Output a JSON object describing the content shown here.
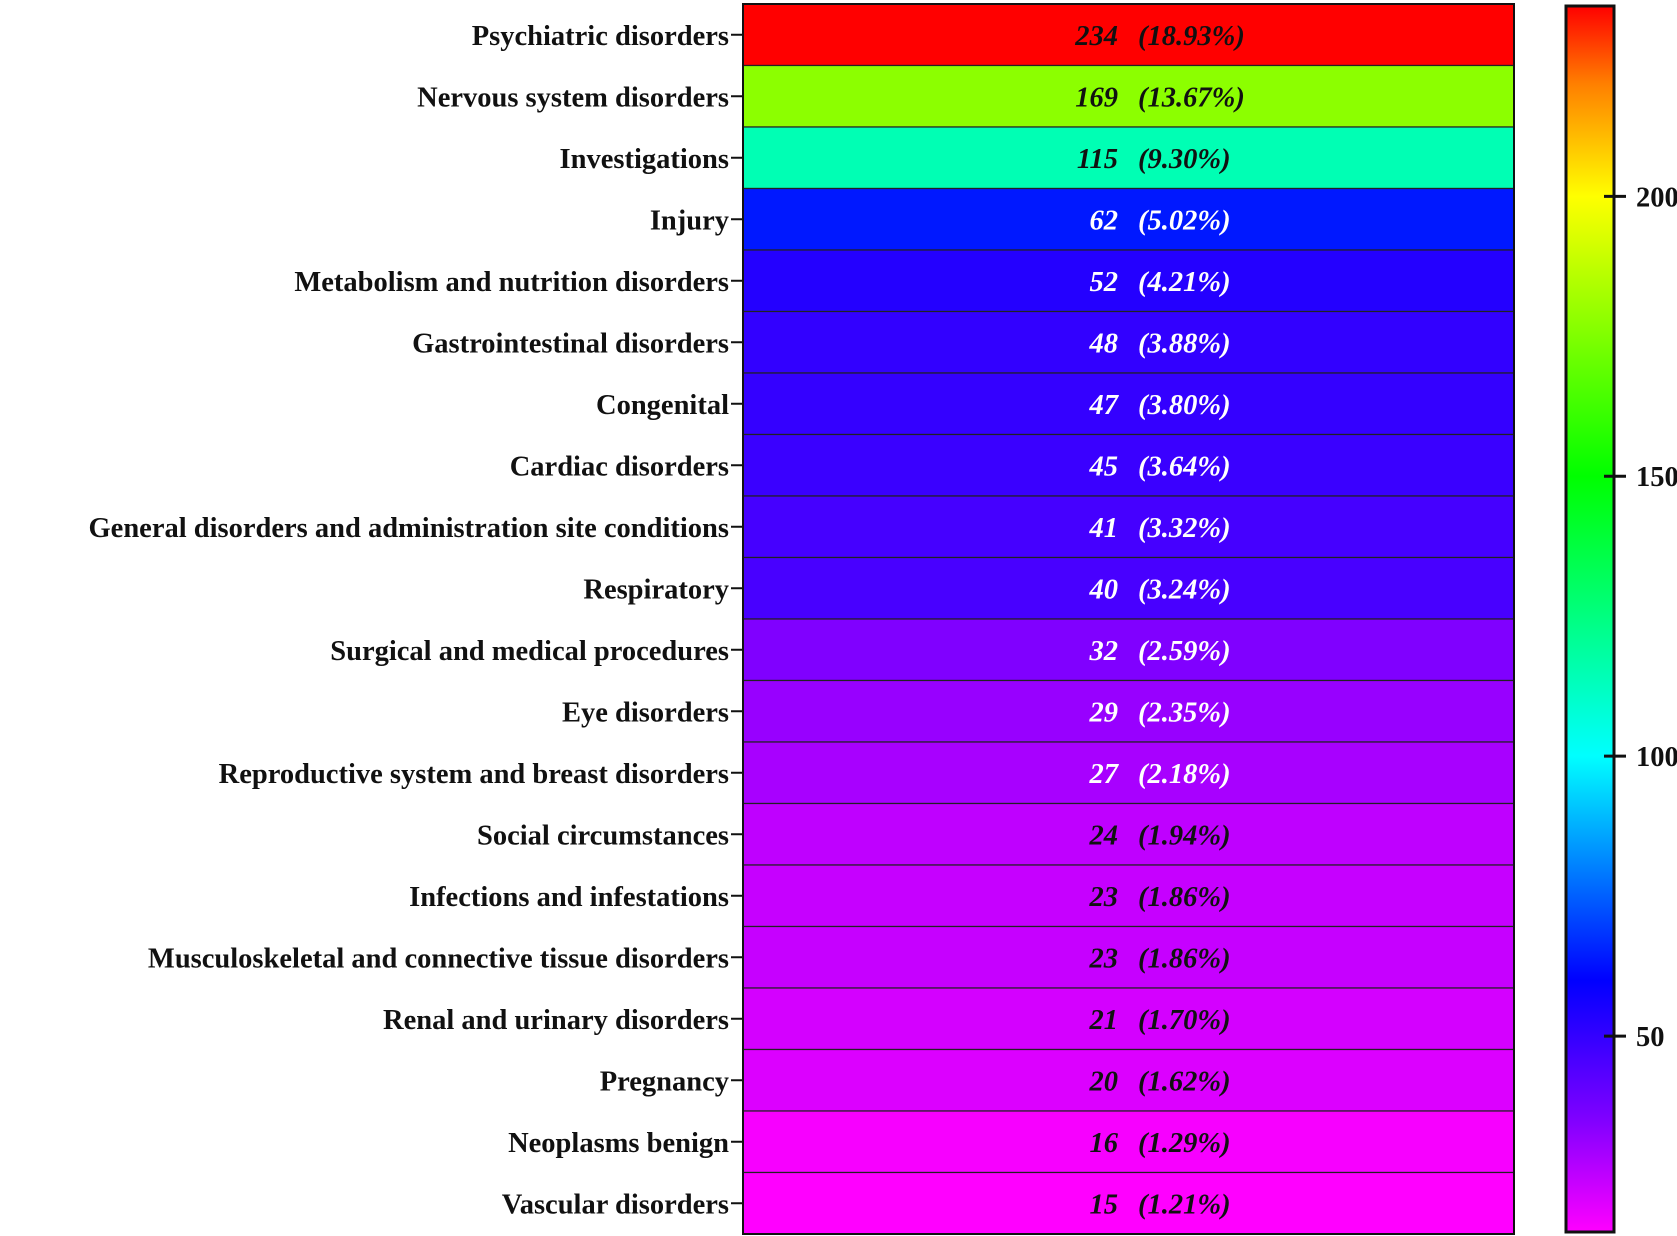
{
  "chart_data": {
    "type": "heatmap",
    "categories": [
      "Psychiatric disorders",
      "Nervous system disorders",
      "Investigations",
      "Injury",
      "Metabolism and nutrition disorders",
      "Gastrointestinal disorders",
      "Congenital",
      "Cardiac disorders",
      "General disorders and administration site conditions",
      "Respiratory",
      "Surgical and medical procedures",
      "Eye disorders",
      "Reproductive system and breast disorders",
      "Social circumstances",
      "Infections and infestations",
      "Musculoskeletal and connective tissue disorders",
      "Renal and urinary disorders",
      "Pregnancy",
      "Neoplasms benign",
      "Vascular disorders"
    ],
    "values": [
      234,
      169,
      115,
      62,
      52,
      48,
      47,
      45,
      41,
      40,
      32,
      29,
      27,
      24,
      23,
      23,
      21,
      20,
      16,
      15
    ],
    "percent_labels": [
      "(18.93%)",
      "(13.67%)",
      "(9.30%)",
      "(5.02%)",
      "(4.21%)",
      "(3.88%)",
      "(3.80%)",
      "(3.64%)",
      "(3.32%)",
      "(3.24%)",
      "(2.59%)",
      "(2.35%)",
      "(2.18%)",
      "(1.94%)",
      "(1.86%)",
      "(1.86%)",
      "(1.70%)",
      "(1.62%)",
      "(1.29%)",
      "(1.21%)"
    ],
    "value_text_colors": [
      "#111111",
      "#111111",
      "#111111",
      "#ffffff",
      "#ffffff",
      "#ffffff",
      "#ffffff",
      "#ffffff",
      "#ffffff",
      "#ffffff",
      "#ffffff",
      "#ffffff",
      "#ffffff",
      "#111111",
      "#111111",
      "#111111",
      "#111111",
      "#111111",
      "#111111",
      "#111111"
    ],
    "colorbar": {
      "range": [
        15,
        234
      ],
      "ticks": [
        50,
        100,
        150,
        200
      ],
      "tick_labels": [
        "50",
        "100",
        "150",
        "200"
      ],
      "stops": [
        {
          "value": 15,
          "color": "#ff00ff"
        },
        {
          "value": 35,
          "color": "#8000ff"
        },
        {
          "value": 60,
          "color": "#0000ff"
        },
        {
          "value": 100,
          "color": "#00ffff"
        },
        {
          "value": 150,
          "color": "#00ff00"
        },
        {
          "value": 200,
          "color": "#ffff00"
        },
        {
          "value": 220,
          "color": "#ff8000"
        },
        {
          "value": 234,
          "color": "#ff0000"
        }
      ]
    },
    "cell_colors": [
      "#ff0000",
      "#8cff00",
      "#00ffb4",
      "#0018ff",
      "#2400ff",
      "#3200ff",
      "#3400ff",
      "#3a00ff",
      "#4500ff",
      "#4800ff",
      "#8000ff",
      "#9800ff",
      "#a800ff",
      "#bf00ff",
      "#c600ff",
      "#c600ff",
      "#d400ff",
      "#dc00ff",
      "#f700ff",
      "#ff00ff"
    ]
  }
}
